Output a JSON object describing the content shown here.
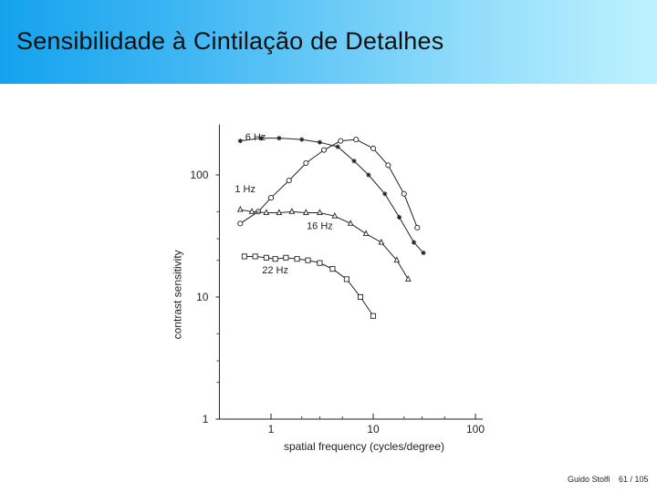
{
  "slide": {
    "title": "Sensibilidade à Cintilação de Detalhes",
    "footer_author": "Guido Stolfi",
    "footer_page": "61 / 105",
    "title_gradient": [
      "#14a2ee",
      "#bff2ff"
    ]
  },
  "chart_data": {
    "type": "line",
    "xlabel": "spatial frequency (cycles/degree)",
    "ylabel": "contrast sensitivity",
    "x_scale": "log",
    "y_scale": "log",
    "xlim": [
      0.4,
      100
    ],
    "ylim": [
      1,
      250
    ],
    "x_ticks": [
      1,
      10,
      100
    ],
    "x_tick_labels": [
      "1",
      "10",
      "100"
    ],
    "y_ticks": [
      1,
      10,
      100
    ],
    "y_tick_labels": [
      "1",
      "10",
      "100"
    ],
    "grid": false,
    "series": [
      {
        "name": "1 Hz",
        "marker": "circle",
        "x": [
          0.5,
          0.75,
          1.0,
          1.5,
          2.2,
          3.3,
          4.8,
          6.8,
          10,
          14,
          20,
          27
        ],
        "y": [
          40,
          50,
          65,
          90,
          125,
          160,
          190,
          195,
          165,
          120,
          70,
          37
        ]
      },
      {
        "name": "6 Hz",
        "marker": "star",
        "x": [
          0.5,
          0.8,
          1.2,
          2.0,
          3.0,
          4.5,
          6.5,
          9.0,
          13,
          18,
          25,
          31
        ],
        "y": [
          190,
          200,
          200,
          195,
          185,
          170,
          130,
          100,
          70,
          45,
          28,
          23
        ]
      },
      {
        "name": "16 Hz",
        "marker": "triangle",
        "x": [
          0.5,
          0.65,
          0.9,
          1.2,
          1.6,
          2.2,
          3.0,
          4.2,
          6.0,
          8.5,
          12,
          17,
          22
        ],
        "y": [
          52,
          50,
          49,
          49,
          50,
          49,
          49,
          46,
          40,
          33,
          28,
          20,
          14
        ]
      },
      {
        "name": "22 Hz",
        "marker": "square",
        "x": [
          0.55,
          0.7,
          0.9,
          1.1,
          1.4,
          1.8,
          2.3,
          3.0,
          4.0,
          5.5,
          7.5,
          10
        ],
        "y": [
          21.5,
          21.5,
          21,
          20.5,
          21,
          20.5,
          20,
          19,
          17,
          14,
          10,
          7
        ]
      }
    ]
  }
}
